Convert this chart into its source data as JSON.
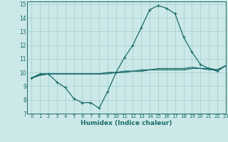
{
  "title": "",
  "xlabel": "Humidex (Indice chaleur)",
  "ylabel": "",
  "xlim": [
    -0.5,
    23
  ],
  "ylim": [
    7,
    15.2
  ],
  "yticks": [
    7,
    8,
    9,
    10,
    11,
    12,
    13,
    14,
    15
  ],
  "xticks": [
    0,
    1,
    2,
    3,
    4,
    5,
    6,
    7,
    8,
    9,
    10,
    11,
    12,
    13,
    14,
    15,
    16,
    17,
    18,
    19,
    20,
    21,
    22,
    23
  ],
  "bg_color": "#cce8e8",
  "line_color": "#1a6b6b",
  "grid_color": "#9fcfcf",
  "curves": [
    {
      "x": [
        0,
        1,
        2,
        3,
        4,
        5,
        6,
        7,
        8,
        9,
        10,
        11,
        12,
        13,
        14,
        15,
        16,
        17,
        18,
        19,
        20,
        21,
        22,
        23
      ],
      "y": [
        9.6,
        9.9,
        9.9,
        9.3,
        8.9,
        8.1,
        7.8,
        7.8,
        7.4,
        8.6,
        10.0,
        11.1,
        12.0,
        13.3,
        14.6,
        14.9,
        14.7,
        14.3,
        12.6,
        11.5,
        10.6,
        10.3,
        10.1,
        10.5
      ],
      "marker": true
    },
    {
      "x": [
        0,
        1,
        2,
        3,
        4,
        5,
        6,
        7,
        8,
        9,
        10,
        11,
        12,
        13,
        14,
        15,
        16,
        17,
        18,
        19,
        20,
        21,
        22,
        23
      ],
      "y": [
        9.6,
        9.9,
        9.9,
        9.9,
        9.9,
        9.9,
        9.9,
        9.9,
        9.9,
        9.9,
        10.0,
        10.0,
        10.1,
        10.1,
        10.2,
        10.2,
        10.2,
        10.2,
        10.2,
        10.3,
        10.3,
        10.3,
        10.2,
        10.5
      ],
      "marker": false
    },
    {
      "x": [
        0,
        1,
        2,
        3,
        4,
        5,
        6,
        7,
        8,
        9,
        10,
        11,
        12,
        13,
        14,
        15,
        16,
        17,
        18,
        19,
        20,
        21,
        22,
        23
      ],
      "y": [
        9.6,
        9.8,
        9.9,
        9.9,
        9.9,
        9.9,
        9.9,
        9.9,
        9.9,
        10.0,
        10.0,
        10.1,
        10.1,
        10.1,
        10.2,
        10.2,
        10.2,
        10.2,
        10.2,
        10.3,
        10.3,
        10.2,
        10.2,
        10.5
      ],
      "marker": false
    },
    {
      "x": [
        0,
        1,
        2,
        3,
        4,
        5,
        6,
        7,
        8,
        9,
        10,
        11,
        12,
        13,
        14,
        15,
        16,
        17,
        18,
        19,
        20,
        21,
        22,
        23
      ],
      "y": [
        9.6,
        9.8,
        9.9,
        9.9,
        9.9,
        9.9,
        9.9,
        9.9,
        9.9,
        10.0,
        10.0,
        10.1,
        10.1,
        10.2,
        10.2,
        10.3,
        10.3,
        10.3,
        10.3,
        10.4,
        10.3,
        10.3,
        10.2,
        10.5
      ],
      "marker": false
    }
  ]
}
